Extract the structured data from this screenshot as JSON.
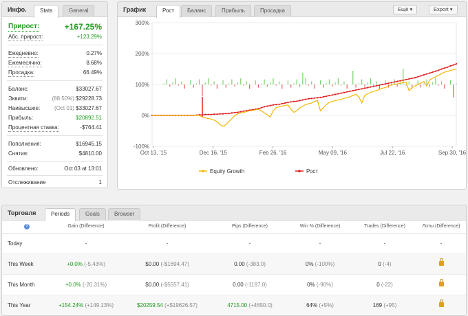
{
  "stats_panel": {
    "title": "Инфо.",
    "tabs": [
      "Stats",
      "General"
    ],
    "rows": [
      {
        "label": "Прирост:",
        "value": "+167.25%",
        "sub": ""
      },
      {
        "label": "Абс. прирост:",
        "value": "+123.29%",
        "sub": ""
      },
      {
        "label": "Ежедневно:",
        "value": "0.27%",
        "sub": ""
      },
      {
        "label": "Ежемесячно:",
        "value": "8.68%",
        "sub": ""
      },
      {
        "label": "Просадка:",
        "value": "66.49%",
        "sub": ""
      },
      {
        "label": "Баланс:",
        "value": "$33027.67",
        "sub": ""
      },
      {
        "label": "Эквити:",
        "value": "$29228.73",
        "sub": "(88.50%)"
      },
      {
        "label": "Наивысшее:",
        "value": "$33027.67",
        "sub": "(Oct 01)"
      },
      {
        "label": "Прибыль:",
        "value": "$20892.51",
        "sub": ""
      },
      {
        "label": "Процентная ставка:",
        "value": "-$764.41",
        "sub": ""
      },
      {
        "label": "Пополнения:",
        "value": "$16945.15",
        "sub": ""
      },
      {
        "label": "Снятия:",
        "value": "$4810.00",
        "sub": ""
      },
      {
        "label": "Обновлено:",
        "value": "Oct 03 at 13:01",
        "sub": ""
      },
      {
        "label": "Отслеживание",
        "value": "1",
        "sub": ""
      }
    ]
  },
  "chart_panel": {
    "title": "График",
    "tabs": [
      "Рост",
      "Баланс",
      "Прибыль",
      "Просадка"
    ],
    "menu_button": "Ещё",
    "export_button": "Export"
  },
  "chart_data": {
    "type": "line",
    "x_ticks": [
      "Oct 13, '15",
      "Dec 16, '15",
      "Feb 26, '16",
      "May 09, '16",
      "Jul 22, '16",
      "Sep 30, '16"
    ],
    "y_ticks": [
      "300%",
      "200%",
      "100%",
      "0%",
      "-100%"
    ],
    "ylim": [
      -100,
      300
    ],
    "legend": [
      "Equity Growth",
      "Рост"
    ],
    "colors": {
      "equity": "#f2b705",
      "growth": "#e02020",
      "bars": "#7ccf6c"
    },
    "series": [
      {
        "name": "Рост",
        "values": [
          0,
          0,
          0,
          0,
          0,
          0,
          0,
          0,
          0,
          0,
          0,
          0,
          0,
          0,
          0,
          1,
          2,
          2,
          3,
          3,
          3,
          4,
          4,
          5,
          5,
          6,
          6,
          8,
          9,
          10,
          12,
          14,
          15,
          17,
          18,
          20,
          22,
          25,
          28,
          30,
          32,
          34,
          35,
          36,
          38,
          40,
          42,
          44,
          45,
          46,
          48,
          50,
          52,
          54,
          55,
          56,
          57,
          58,
          60,
          62,
          64,
          66,
          68,
          70,
          72,
          74,
          76,
          78,
          80,
          82,
          84,
          86,
          88,
          90,
          92,
          94,
          96,
          98,
          100,
          102,
          104,
          106,
          108,
          110,
          112,
          114,
          116,
          118,
          120,
          122,
          125,
          128,
          131,
          134,
          137,
          140,
          143,
          146,
          150,
          153,
          156,
          160,
          163,
          167
        ]
      },
      {
        "name": "Equity Growth",
        "values": [
          0,
          0,
          0,
          0,
          0,
          0,
          0,
          0,
          0,
          0,
          0,
          0,
          0,
          0,
          0,
          0,
          0,
          -5,
          -8,
          -10,
          -12,
          -15,
          -20,
          -30,
          -35,
          -30,
          -20,
          -10,
          0,
          5,
          8,
          10,
          12,
          15,
          16,
          18,
          20,
          15,
          8,
          2,
          -5,
          15,
          25,
          28,
          30,
          32,
          34,
          20,
          10,
          15,
          25,
          30,
          35,
          38,
          40,
          45,
          48,
          15,
          25,
          35,
          42,
          45,
          48,
          50,
          52,
          55,
          58,
          60,
          65,
          68,
          60,
          40,
          65,
          70,
          75,
          78,
          80,
          85,
          88,
          90,
          95,
          98,
          100,
          102,
          104,
          106,
          108,
          80,
          90,
          95,
          100,
          105,
          110,
          95,
          115,
          120,
          125,
          130,
          135,
          140,
          142,
          145,
          148,
          150
        ]
      }
    ]
  },
  "trade_panel": {
    "title": "Торговля",
    "tabs": [
      "Periods",
      "Goals",
      "Browser"
    ],
    "help_icon": "?",
    "columns": [
      "",
      "Gain (Difference)",
      "Profit (Difference)",
      "Pips (Difference)",
      "Win % (Difference)",
      "Trades (Difference)",
      "Лоты (Difference)"
    ],
    "rows": [
      {
        "period": "Today",
        "gain": "-",
        "gain_diff": "",
        "profit": "-",
        "profit_diff": "",
        "pips": "-",
        "pips_diff": "",
        "win": "-",
        "win_diff": "",
        "trades": "-",
        "trades_diff": "",
        "lots": "-"
      },
      {
        "period": "This Week",
        "gain": "+0.0%",
        "gain_diff": "(-5.43%)",
        "profit": "$0.00",
        "profit_diff": "(-$1694.47)",
        "pips": "0.00",
        "pips_diff": "(-383.0)",
        "win": "0%",
        "win_diff": "(-100%)",
        "trades": "0",
        "trades_diff": "(-4)",
        "lots": ""
      },
      {
        "period": "This Month",
        "gain": "+0.0%",
        "gain_diff": "(-20.31%)",
        "profit": "$0.00",
        "profit_diff": "(-$5557.41)",
        "pips": "0.00",
        "pips_diff": "(-1197.0)",
        "win": "0%",
        "win_diff": "(-90%)",
        "trades": "0",
        "trades_diff": "(-22)",
        "lots": ""
      },
      {
        "period": "This Year",
        "gain": "+154.24%",
        "gain_diff": "(+149.13%)",
        "profit": "$20259.54",
        "profit_diff": "(+$19626.57)",
        "pips": "4715.00",
        "pips_diff": "(+4650.0)",
        "win": "64%",
        "win_diff": "(+5%)",
        "trades": "169",
        "trades_diff": "(+95)",
        "lots": ""
      }
    ]
  }
}
